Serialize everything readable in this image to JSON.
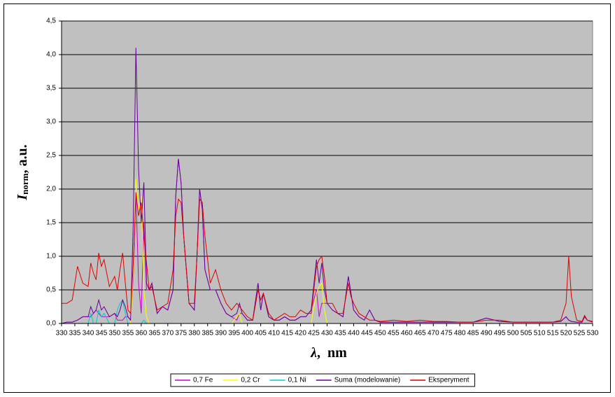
{
  "chart_data": {
    "type": "line",
    "ylabel": "I",
    "ylabel_sub": "norm",
    "ylabel_unit": ", a.u.",
    "xlabel": "λ",
    "xlabel_unit": ",  nm",
    "x": [
      330,
      332,
      334,
      336,
      338,
      340,
      341,
      342,
      343,
      344,
      345,
      346,
      348,
      350,
      351,
      352,
      353,
      354,
      355,
      356,
      357,
      358,
      359,
      360,
      361,
      362,
      363,
      364,
      366,
      368,
      370,
      372,
      373,
      374,
      375,
      376,
      378,
      380,
      381,
      382,
      383,
      384,
      386,
      388,
      390,
      392,
      394,
      396,
      397,
      398,
      400,
      402,
      404,
      405,
      406,
      408,
      410,
      412,
      414,
      416,
      418,
      420,
      422,
      424,
      426,
      427,
      428,
      429,
      430,
      432,
      434,
      436,
      438,
      439,
      440,
      442,
      444,
      446,
      448,
      450,
      455,
      460,
      465,
      470,
      475,
      480,
      485,
      490,
      495,
      500,
      505,
      510,
      515,
      518,
      520,
      521,
      522,
      524,
      526,
      527,
      528,
      530
    ],
    "series": [
      {
        "name": "0,7 Fe",
        "color": "#cc00cc",
        "values": [
          0,
          0.02,
          0.02,
          0.05,
          0.1,
          0.1,
          0.1,
          0.15,
          0.2,
          0.15,
          0.1,
          0.1,
          0.1,
          0.15,
          0.05,
          0.05,
          0.05,
          0.1,
          0.1,
          0.05,
          0.7,
          1.95,
          0.6,
          0.15,
          1.5,
          0.5,
          0.5,
          0.6,
          0.15,
          0.25,
          0.2,
          0.5,
          1.9,
          2.45,
          2.1,
          1.3,
          0.3,
          0.2,
          1.0,
          2.0,
          1.7,
          0.8,
          0.5,
          0.5,
          0.3,
          0.15,
          0.1,
          0.05,
          0.15,
          0.15,
          0.05,
          0.05,
          0.6,
          0.2,
          0.45,
          0.1,
          0.05,
          0.05,
          0.1,
          0.05,
          0.05,
          0.1,
          0.1,
          0.2,
          0.5,
          0.1,
          0.3,
          0.3,
          0.3,
          0.2,
          0.15,
          0.1,
          0.7,
          0.45,
          0.2,
          0.1,
          0.05,
          0.2,
          0.05,
          0.02,
          0.02,
          0.02,
          0.02,
          0.02,
          0.02,
          0.02,
          0.02,
          0.08,
          0.03,
          0.02,
          0.02,
          0.02,
          0.02,
          0.03,
          0.1,
          0.05,
          0.03,
          0.02,
          0.02,
          0.1,
          0.05,
          0.02
        ]
      },
      {
        "name": "0,2 Cr",
        "color": "#ffff00",
        "values": [
          0,
          0,
          0,
          0,
          0,
          0,
          0,
          0,
          0,
          0,
          0,
          0,
          0,
          0,
          0,
          0,
          0,
          0,
          0,
          0,
          0.8,
          2.15,
          1.7,
          1.9,
          0.5,
          0.1,
          0,
          0,
          0,
          0,
          0,
          0,
          0,
          0,
          0,
          0,
          0,
          0,
          0,
          0,
          0,
          0,
          0,
          0,
          0,
          0,
          0,
          0.1,
          0.15,
          0,
          0,
          0,
          0,
          0,
          0,
          0,
          0,
          0,
          0,
          0,
          0,
          0,
          0,
          0,
          0.45,
          0.55,
          0.6,
          0.2,
          0,
          0,
          0,
          0,
          0,
          0,
          0,
          0,
          0,
          0,
          0,
          0,
          0,
          0,
          0,
          0,
          0,
          0,
          0,
          0,
          0,
          0,
          0,
          0,
          0,
          0,
          0,
          0,
          0,
          0,
          0,
          0,
          0,
          0
        ]
      },
      {
        "name": "0,1 Ni",
        "color": "#00cccc",
        "values": [
          0,
          0,
          0,
          0,
          0,
          0,
          0.15,
          0,
          0,
          0.2,
          0.1,
          0.15,
          0,
          0,
          0.2,
          0.3,
          0.35,
          0.15,
          0,
          0,
          0,
          0,
          0,
          0,
          0.05,
          0,
          0,
          0,
          0,
          0,
          0,
          0,
          0,
          0,
          0,
          0,
          0,
          0,
          0,
          0,
          0,
          0,
          0,
          0,
          0,
          0,
          0,
          0,
          0,
          0,
          0,
          0,
          0,
          0,
          0,
          0,
          0,
          0,
          0,
          0,
          0,
          0,
          0,
          0,
          0,
          0,
          0,
          0,
          0,
          0,
          0,
          0,
          0,
          0,
          0,
          0,
          0,
          0,
          0,
          0,
          0,
          0,
          0,
          0,
          0,
          0,
          0,
          0,
          0,
          0,
          0,
          0,
          0,
          0,
          0,
          0,
          0,
          0,
          0,
          0,
          0,
          0
        ]
      },
      {
        "name": "Suma (modelowanie)",
        "color": "#660099",
        "values": [
          0,
          0.02,
          0.02,
          0.05,
          0.1,
          0.1,
          0.25,
          0.15,
          0.2,
          0.35,
          0.2,
          0.25,
          0.1,
          0.15,
          0.1,
          0.2,
          0.35,
          0.25,
          0.1,
          0.05,
          1.5,
          4.1,
          2.3,
          1.5,
          2.1,
          0.6,
          0.5,
          0.6,
          0.15,
          0.25,
          0.2,
          0.5,
          1.9,
          2.45,
          2.1,
          1.3,
          0.3,
          0.2,
          1.0,
          2.0,
          1.7,
          0.8,
          0.5,
          0.5,
          0.3,
          0.15,
          0.1,
          0.15,
          0.3,
          0.15,
          0.05,
          0.05,
          0.6,
          0.2,
          0.45,
          0.1,
          0.05,
          0.05,
          0.1,
          0.05,
          0.05,
          0.1,
          0.1,
          0.2,
          0.95,
          0.6,
          0.9,
          0.5,
          0.3,
          0.2,
          0.15,
          0.1,
          0.7,
          0.45,
          0.2,
          0.1,
          0.05,
          0.2,
          0.05,
          0.02,
          0.02,
          0.02,
          0.02,
          0.02,
          0.02,
          0.02,
          0.02,
          0.08,
          0.03,
          0.02,
          0.02,
          0.02,
          0.02,
          0.03,
          0.1,
          0.05,
          0.03,
          0.02,
          0.02,
          0.1,
          0.05,
          0.02
        ]
      },
      {
        "name": "Eksperyment",
        "color": "#dd0000",
        "values": [
          0.3,
          0.3,
          0.35,
          0.85,
          0.6,
          0.55,
          0.9,
          0.75,
          0.65,
          1.05,
          0.85,
          0.95,
          0.55,
          0.7,
          0.5,
          0.8,
          1.05,
          0.6,
          0.2,
          0.15,
          0.9,
          1.95,
          1.6,
          1.8,
          1.3,
          0.9,
          0.5,
          0.55,
          0.2,
          0.25,
          0.3,
          0.8,
          1.6,
          1.85,
          1.8,
          1.3,
          0.3,
          0.3,
          1.0,
          1.85,
          1.8,
          1.3,
          0.6,
          0.8,
          0.5,
          0.3,
          0.2,
          0.3,
          0.25,
          0.2,
          0.1,
          0.05,
          0.5,
          0.35,
          0.45,
          0.15,
          0.05,
          0.1,
          0.15,
          0.1,
          0.1,
          0.2,
          0.15,
          0.15,
          0.85,
          0.95,
          1.0,
          0.7,
          0.3,
          0.3,
          0.15,
          0.15,
          0.6,
          0.4,
          0.3,
          0.15,
          0.1,
          0.05,
          0.05,
          0.03,
          0.05,
          0.03,
          0.05,
          0.03,
          0.03,
          0.02,
          0.02,
          0.05,
          0.05,
          0.02,
          0.02,
          0.02,
          0.02,
          0.05,
          0.3,
          1.0,
          0.4,
          0.05,
          0.03,
          0.12,
          0.05,
          0.03
        ]
      }
    ],
    "xlim": [
      330,
      530
    ],
    "xticks": [
      330,
      335,
      340,
      345,
      350,
      355,
      360,
      365,
      370,
      375,
      380,
      385,
      390,
      395,
      400,
      405,
      410,
      415,
      420,
      425,
      430,
      435,
      440,
      445,
      450,
      455,
      460,
      465,
      470,
      475,
      480,
      485,
      490,
      495,
      500,
      505,
      510,
      515,
      520,
      525,
      530
    ],
    "ylim": [
      0,
      4.5
    ],
    "yticks": [
      {
        "value": 0,
        "label": "0,0"
      },
      {
        "value": 0.5,
        "label": "0,5"
      },
      {
        "value": 1,
        "label": "1,0"
      },
      {
        "value": 1.5,
        "label": "1,5"
      },
      {
        "value": 2,
        "label": "2,0"
      },
      {
        "value": 2.5,
        "label": "2,5"
      },
      {
        "value": 3,
        "label": "3,0"
      },
      {
        "value": 3.5,
        "label": "3,5"
      },
      {
        "value": 4,
        "label": "4,0"
      },
      {
        "value": 4.5,
        "label": "4,5"
      }
    ],
    "grid": true,
    "legend": "bottom",
    "background": "#c0c0c0"
  }
}
